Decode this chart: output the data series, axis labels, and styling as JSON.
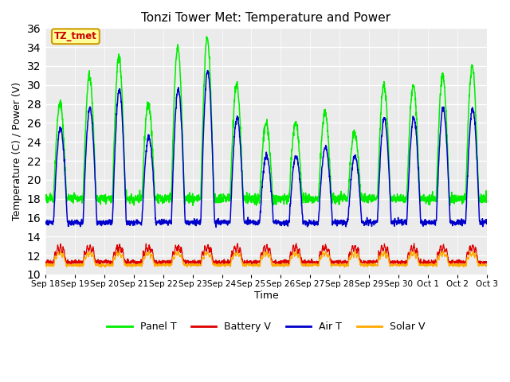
{
  "title": "Tonzi Tower Met: Temperature and Power",
  "xlabel": "Time",
  "ylabel": "Temperature (C) / Power (V)",
  "ylim": [
    10,
    36
  ],
  "yticks": [
    10,
    12,
    14,
    16,
    18,
    20,
    22,
    24,
    26,
    28,
    30,
    32,
    34,
    36
  ],
  "annotation_text": "TZ_tmet",
  "annotation_color": "#cc0000",
  "annotation_bg": "#ffff99",
  "annotation_border": "#cc9900",
  "colors": {
    "Panel T": "#00ee00",
    "Battery V": "#dd0000",
    "Air T": "#0000cc",
    "Solar V": "#ffaa00"
  },
  "bg_color": "#ebebeb",
  "tick_labels": [
    "Sep 18",
    "Sep 19",
    "Sep 20",
    "Sep 21",
    "Sep 22",
    "Sep 23",
    "Sep 24",
    "Sep 25",
    "Sep 26",
    "Sep 27",
    "Sep 28",
    "Sep 29",
    "Sep 30",
    "Oct 1",
    "Oct 2",
    "Oct 3"
  ],
  "panel_amps": [
    10,
    13,
    15,
    10,
    16,
    17,
    12,
    8,
    8,
    9,
    7,
    12,
    12,
    13,
    14
  ],
  "air_amps": [
    10,
    12,
    14,
    9,
    14,
    16,
    11,
    7,
    7,
    8,
    7,
    11,
    11,
    12,
    12
  ],
  "panel_base": 18.0,
  "air_base": 15.5,
  "batt_base": 11.3,
  "solar_base": 11.0
}
